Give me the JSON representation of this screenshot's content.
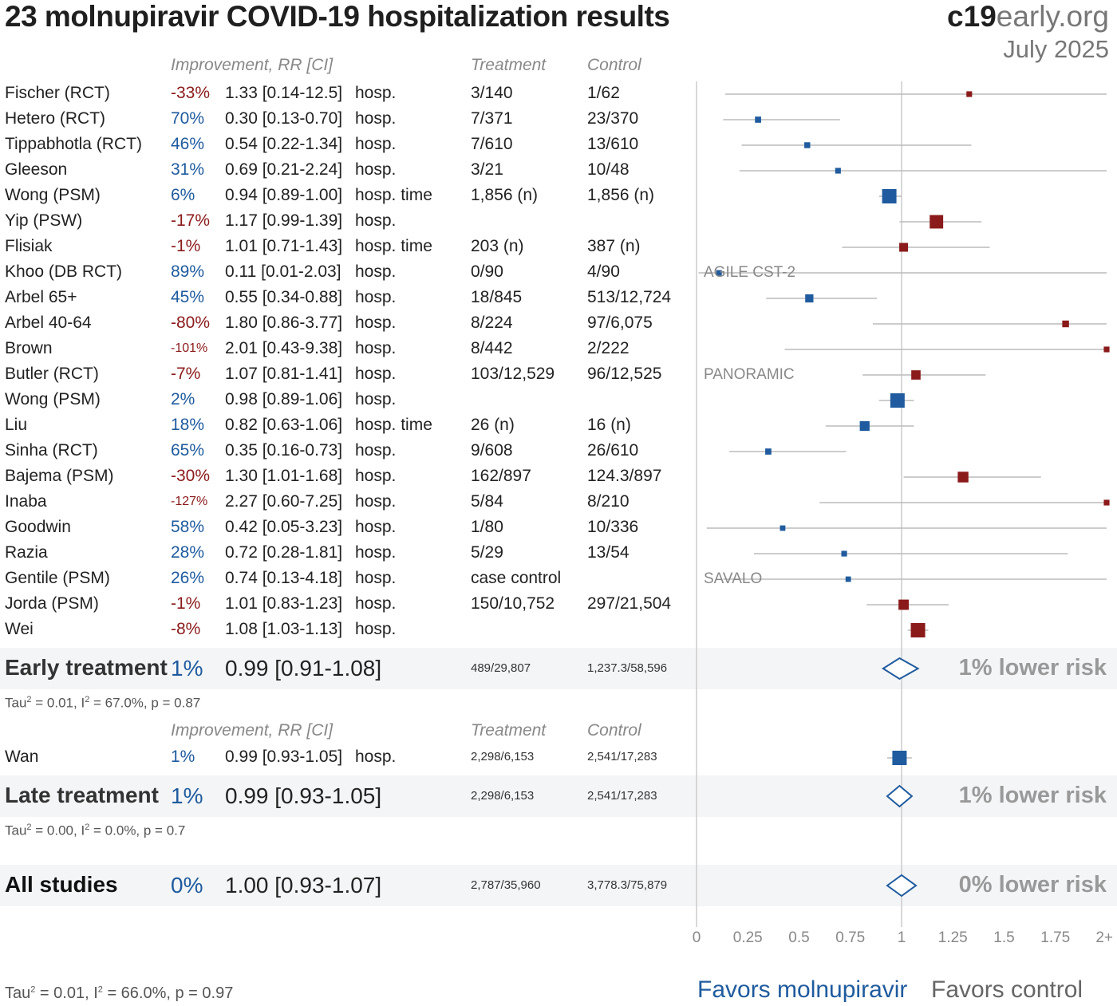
{
  "header": {
    "title": "23 molnupiravir COVID-19 hospitalization results",
    "brand_bold": "c19",
    "brand_light": "early.org",
    "date": "July 2025"
  },
  "columns": {
    "improvement": "Improvement, RR [CI]",
    "treatment": "Treatment",
    "control": "Control"
  },
  "early": {
    "studies": [
      {
        "name": "Fischer (RCT)",
        "improvement": "-33%",
        "rr_text": "1.33 [0.14-12.5]",
        "outcome": "hosp.",
        "treatment": "3/140",
        "control": "1/62",
        "rr": 1.33,
        "lo": 0.14,
        "hi": 12.5,
        "weight": 0.05,
        "label": ""
      },
      {
        "name": "Hetero (RCT)",
        "improvement": "70%",
        "rr_text": "0.30 [0.13-0.70]",
        "outcome": "hosp.",
        "treatment": "7/371",
        "control": "23/370",
        "rr": 0.3,
        "lo": 0.13,
        "hi": 0.7,
        "weight": 0.07,
        "label": ""
      },
      {
        "name": "Tippabhotla (RCT)",
        "improvement": "46%",
        "rr_text": "0.54 [0.22-1.34]",
        "outcome": "hosp.",
        "treatment": "7/610",
        "control": "13/610",
        "rr": 0.54,
        "lo": 0.22,
        "hi": 1.34,
        "weight": 0.06,
        "label": ""
      },
      {
        "name": "Gleeson",
        "improvement": "31%",
        "rr_text": "0.69 [0.21-2.24]",
        "outcome": "hosp.",
        "treatment": "3/21",
        "control": "10/48",
        "rr": 0.69,
        "lo": 0.21,
        "hi": 2.24,
        "weight": 0.05,
        "label": ""
      },
      {
        "name": "Wong (PSM)",
        "improvement": "6%",
        "rr_text": "0.94 [0.89-1.00]",
        "outcome": "hosp. time",
        "treatment": "1,856 (n)",
        "control": "1,856 (n)",
        "rr": 0.94,
        "lo": 0.89,
        "hi": 1.0,
        "weight": 1.0,
        "label": ""
      },
      {
        "name": "Yip (PSW)",
        "improvement": "-17%",
        "rr_text": "1.17 [0.99-1.39]",
        "outcome": "hosp.",
        "treatment": "",
        "control": "",
        "rr": 1.17,
        "lo": 0.99,
        "hi": 1.39,
        "weight": 0.85,
        "label": ""
      },
      {
        "name": "Flisiak",
        "improvement": "-1%",
        "rr_text": "1.01 [0.71-1.43]",
        "outcome": "hosp. time",
        "treatment": "203 (n)",
        "control": "387 (n)",
        "rr": 1.01,
        "lo": 0.71,
        "hi": 1.43,
        "weight": 0.25,
        "label": ""
      },
      {
        "name": "Khoo (DB RCT)",
        "improvement": "89%",
        "rr_text": "0.11 [0.01-2.03]",
        "outcome": "hosp.",
        "treatment": "0/90",
        "control": "4/90",
        "rr": 0.11,
        "lo": 0.01,
        "hi": 2.03,
        "weight": 0.04,
        "label": "AGILE CST-2"
      },
      {
        "name": "Arbel 65+",
        "improvement": "45%",
        "rr_text": "0.55 [0.34-0.88]",
        "outcome": "hosp.",
        "treatment": "18/845",
        "control": "513/12,724",
        "rr": 0.55,
        "lo": 0.34,
        "hi": 0.88,
        "weight": 0.2,
        "label": ""
      },
      {
        "name": "Arbel 40-64",
        "improvement": "-80%",
        "rr_text": "1.80 [0.86-3.77]",
        "outcome": "hosp.",
        "treatment": "8/224",
        "control": "97/6,075",
        "rr": 1.8,
        "lo": 0.86,
        "hi": 3.77,
        "weight": 0.1,
        "label": ""
      },
      {
        "name": "Brown",
        "improvement": "-101%",
        "rr_text": "2.01 [0.43-9.38]",
        "outcome": "hosp.",
        "treatment": "8/442",
        "control": "2/222",
        "rr": 2.01,
        "lo": 0.43,
        "hi": 9.38,
        "weight": 0.05,
        "label": ""
      },
      {
        "name": "Butler (RCT)",
        "improvement": "-7%",
        "rr_text": "1.07 [0.81-1.41]",
        "outcome": "hosp.",
        "treatment": "103/12,529",
        "control": "96/12,525",
        "rr": 1.07,
        "lo": 0.81,
        "hi": 1.41,
        "weight": 0.3,
        "label": "PANORAMIC"
      },
      {
        "name": "Wong (PSM)",
        "improvement": "2%",
        "rr_text": "0.98 [0.89-1.06]",
        "outcome": "hosp.",
        "treatment": "",
        "control": "",
        "rr": 0.98,
        "lo": 0.89,
        "hi": 1.06,
        "weight": 1.0,
        "label": ""
      },
      {
        "name": "Liu",
        "improvement": "18%",
        "rr_text": "0.82 [0.63-1.06]",
        "outcome": "hosp. time",
        "treatment": "26 (n)",
        "control": "16 (n)",
        "rr": 0.82,
        "lo": 0.63,
        "hi": 1.06,
        "weight": 0.35,
        "label": ""
      },
      {
        "name": "Sinha (RCT)",
        "improvement": "65%",
        "rr_text": "0.35 [0.16-0.73]",
        "outcome": "hosp.",
        "treatment": "9/608",
        "control": "26/610",
        "rr": 0.35,
        "lo": 0.16,
        "hi": 0.73,
        "weight": 0.07,
        "label": ""
      },
      {
        "name": "Bajema (PSM)",
        "improvement": "-30%",
        "rr_text": "1.30 [1.01-1.68]",
        "outcome": "hosp.",
        "treatment": "162/897",
        "control": "124.3/897",
        "rr": 1.3,
        "lo": 1.01,
        "hi": 1.68,
        "weight": 0.45,
        "label": ""
      },
      {
        "name": "Inaba",
        "improvement": "-127%",
        "rr_text": "2.27 [0.60-7.25]",
        "outcome": "hosp.",
        "treatment": "5/84",
        "control": "8/210",
        "rr": 2.27,
        "lo": 0.6,
        "hi": 7.25,
        "weight": 0.05,
        "label": ""
      },
      {
        "name": "Goodwin",
        "improvement": "58%",
        "rr_text": "0.42 [0.05-3.23]",
        "outcome": "hosp.",
        "treatment": "1/80",
        "control": "10/336",
        "rr": 0.42,
        "lo": 0.05,
        "hi": 3.23,
        "weight": 0.04,
        "label": ""
      },
      {
        "name": "Razia",
        "improvement": "28%",
        "rr_text": "0.72 [0.28-1.81]",
        "outcome": "hosp.",
        "treatment": "5/29",
        "control": "13/54",
        "rr": 0.72,
        "lo": 0.28,
        "hi": 1.81,
        "weight": 0.05,
        "label": ""
      },
      {
        "name": "Gentile (PSM)",
        "improvement": "26%",
        "rr_text": "0.74 [0.13-4.18]",
        "outcome": "hosp.",
        "treatment": "case control",
        "control": "",
        "rr": 0.74,
        "lo": 0.13,
        "hi": 4.18,
        "weight": 0.04,
        "label": "SAVALO"
      },
      {
        "name": "Jorda (PSM)",
        "improvement": "-1%",
        "rr_text": "1.01 [0.83-1.23]",
        "outcome": "hosp.",
        "treatment": "150/10,752",
        "control": "297/21,504",
        "rr": 1.01,
        "lo": 0.83,
        "hi": 1.23,
        "weight": 0.4,
        "label": ""
      },
      {
        "name": "Wei",
        "improvement": "-8%",
        "rr_text": "1.08 [1.03-1.13]",
        "outcome": "hosp.",
        "treatment": "",
        "control": "",
        "rr": 1.08,
        "lo": 1.03,
        "hi": 1.13,
        "weight": 1.0,
        "label": ""
      }
    ],
    "summary": {
      "label": "Early treatment",
      "improvement": "1%",
      "rr_text": "0.99 [0.91-1.08]",
      "treatment": "489/29,807",
      "control": "1,237.3/58,596",
      "rr": 0.99,
      "lo": 0.91,
      "hi": 1.08,
      "lower_risk": "1% lower risk"
    },
    "stats": {
      "tau_prefix": "Tau",
      "tau_rest": " = 0.01, I",
      "i_rest": " = 67.0%, p = 0.87"
    }
  },
  "late": {
    "studies": [
      {
        "name": "Wan",
        "improvement": "1%",
        "rr_text": "0.99 [0.93-1.05]",
        "outcome": "hosp.",
        "treatment": "2,298/6,153",
        "control": "2,541/17,283",
        "rr": 0.99,
        "lo": 0.93,
        "hi": 1.05,
        "weight": 1.0,
        "label": ""
      }
    ],
    "summary": {
      "label": "Late treatment",
      "improvement": "1%",
      "rr_text": "0.99 [0.93-1.05]",
      "treatment": "2,298/6,153",
      "control": "2,541/17,283",
      "rr": 0.99,
      "lo": 0.93,
      "hi": 1.05,
      "lower_risk": "1% lower risk"
    },
    "stats": {
      "tau_prefix": "Tau",
      "tau_rest": " = 0.00, I",
      "i_rest": " = 0.0%, p = 0.7"
    }
  },
  "all": {
    "summary": {
      "label": "All studies",
      "improvement": "0%",
      "rr_text": "1.00 [0.93-1.07]",
      "treatment": "2,787/35,960",
      "control": "3,778.3/75,879",
      "rr": 1.0,
      "lo": 0.93,
      "hi": 1.07,
      "lower_risk": "0% lower risk"
    },
    "stats": {
      "tau_prefix": "Tau",
      "tau_rest": " = 0.01, I",
      "i_rest": " = 66.0%, p = 0.97"
    }
  },
  "footer": {
    "favors_left": "Favors molnupiravir",
    "favors_right": "Favors control"
  },
  "colors": {
    "favor": "#1f5b9e",
    "against": "#8b1a1a",
    "ci": "#bbbbbb",
    "axis": "#cccccc"
  },
  "chart_data": {
    "type": "forest",
    "x_scale": "linear",
    "xlim": [
      0,
      2
    ],
    "x_ticks": [
      0,
      0.25,
      0.5,
      0.75,
      1,
      1.25,
      1.5,
      1.75,
      2
    ],
    "x_tick_labels": [
      "0",
      "0.25",
      "0.5",
      "0.75",
      "1",
      "1.25",
      "1.5",
      "1.75",
      "2+"
    ],
    "reference_line": 1
  }
}
